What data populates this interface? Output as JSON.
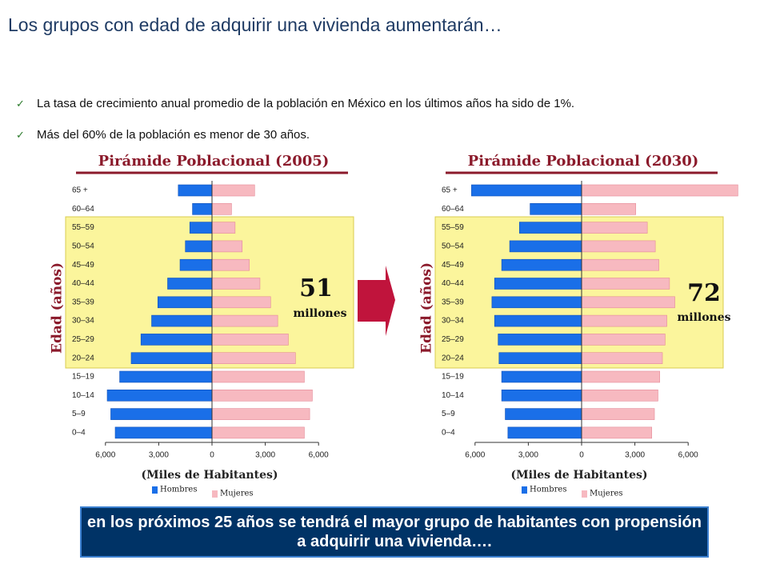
{
  "title": "Los grupos con edad de adquirir una vivienda aumentarán…",
  "bullets": [
    "La tasa de crecimiento anual promedio de la población en México en los últimos años ha sido de 1%.",
    "Más del 60% de la población es menor de 30 años."
  ],
  "footer": "en los próximos 25 años se tendrá el mayor grupo de habitantes con propensión a adquirir una vivienda….",
  "chart_data": [
    {
      "type": "pyramid",
      "title": "Pirámide Poblacional (2005)",
      "ylabel": "Edad (años)",
      "xlabel": "(Miles de Habitantes)",
      "categories": [
        "65 +",
        "60–64",
        "55–59",
        "50–54",
        "45–49",
        "40–44",
        "35–39",
        "30–34",
        "25–29",
        "20–24",
        "15–19",
        "10–14",
        "5–9",
        "0–4"
      ],
      "series": [
        {
          "name": "Hombres",
          "color": "#1a6fe8",
          "values": [
            -1900,
            -1100,
            -1250,
            -1500,
            -1800,
            -2500,
            -3050,
            -3400,
            -4000,
            -4550,
            -5200,
            -5900,
            -5700,
            -5450
          ]
        },
        {
          "name": "Mujeres",
          "color": "#f7b9c0",
          "values": [
            2400,
            1100,
            1300,
            1700,
            2100,
            2700,
            3300,
            3700,
            4300,
            4700,
            5200,
            5650,
            5500,
            5200
          ]
        }
      ],
      "xlim": [
        -6000,
        6000
      ],
      "xticks": [
        {
          "value": -6000,
          "label": "6,000"
        },
        {
          "value": -3000,
          "label": "3,000"
        },
        0,
        {
          "value": 3000,
          "label": "3,000"
        },
        {
          "value": 6000,
          "label": "6,000"
        }
      ],
      "annotations": [
        "51",
        "millones"
      ]
    },
    {
      "type": "pyramid",
      "title": "Pirámide Poblacional (2030)",
      "ylabel": "Edad (años)",
      "xlabel": "(Miles de Habitantes)",
      "categories": [
        "65 +",
        "60–64",
        "55–59",
        "50–54",
        "45–49",
        "40–44",
        "35–39",
        "30–34",
        "25–29",
        "20–24",
        "15–19",
        "10–14",
        "5–9",
        "0–4"
      ],
      "series": [
        {
          "name": "Hombres",
          "color": "#1a6fe8",
          "values": [
            -6200,
            -2900,
            -3500,
            -4050,
            -4500,
            -4900,
            -5050,
            -4900,
            -4700,
            -4650,
            -4500,
            -4500,
            -4300,
            -4150
          ]
        },
        {
          "name": "Mujeres",
          "color": "#f7b9c0",
          "values": [
            8800,
            3050,
            3700,
            4150,
            4350,
            4950,
            5250,
            4800,
            4700,
            4550,
            4400,
            4300,
            4100,
            3950
          ]
        }
      ],
      "xlim": [
        -6000,
        6000
      ],
      "xticks": [
        {
          "value": -6000,
          "label": "6,000"
        },
        {
          "value": -3000,
          "label": "3,000"
        },
        0,
        {
          "value": 3000,
          "label": "3,000"
        },
        {
          "value": 6000,
          "label": "6,000"
        }
      ],
      "annotations": [
        "72",
        "millones"
      ]
    }
  ]
}
